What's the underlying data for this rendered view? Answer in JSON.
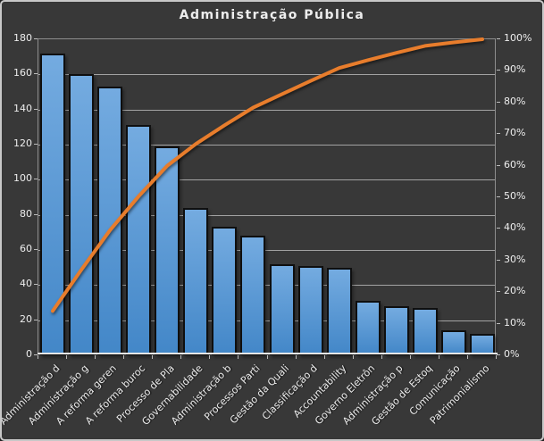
{
  "chart_data": {
    "type": "bar",
    "subtype": "pareto",
    "title": "Administração Pública",
    "categories": [
      "Administração d",
      "Administração g",
      "A reforma geren",
      "A reforma buroc",
      "Processo de Pla",
      "Governabilidade",
      "Administração b",
      "Processos Parti",
      "Gestão da Quali",
      "Classificação d",
      "Accountability",
      "Governo Eletrôn",
      "Administração p",
      "Gestão de Estoq",
      "Comunicação",
      "Patrimonialismo"
    ],
    "series": [
      {
        "name": "frequency-bars",
        "type": "bar",
        "axis": "left",
        "values": [
          172,
          160,
          153,
          131,
          119,
          84,
          73,
          68,
          52,
          51,
          50,
          31,
          28,
          27,
          14,
          12
        ]
      },
      {
        "name": "cumulative-percent-line",
        "type": "line",
        "axis": "right",
        "values": [
          14.0,
          27.1,
          39.6,
          50.3,
          60.0,
          66.9,
          72.8,
          78.4,
          82.6,
          86.8,
          90.9,
          93.4,
          95.7,
          97.9,
          99.0,
          100.0
        ]
      }
    ],
    "left_axis": {
      "min": 0,
      "max": 180,
      "step": 20,
      "tick_labels": [
        "180",
        "160",
        "140",
        "120",
        "100",
        "80",
        "60",
        "40",
        "20",
        "0"
      ]
    },
    "right_axis": {
      "min": 0,
      "max": 100,
      "step": 10,
      "tick_labels": [
        "100%",
        "90%",
        "80%",
        "70%",
        "60%",
        "50%",
        "40%",
        "30%",
        "20%",
        "10%",
        "0%"
      ]
    },
    "grid": "horizontal, at left-axis steps",
    "legend": "none"
  },
  "colors": {
    "background": "#383838",
    "frame_border": "#c8c8c8",
    "plot_border": "#8d8d8d",
    "gridline": "#a3a3a3",
    "axis_line": "#e6e6e6",
    "tick": "#bdbdbd",
    "bar_fill_top": "#74abe0",
    "bar_fill_bottom": "#4387c8",
    "bar_border": "#0f0f0f",
    "line": "#e87d2c",
    "text": "#ededed"
  }
}
